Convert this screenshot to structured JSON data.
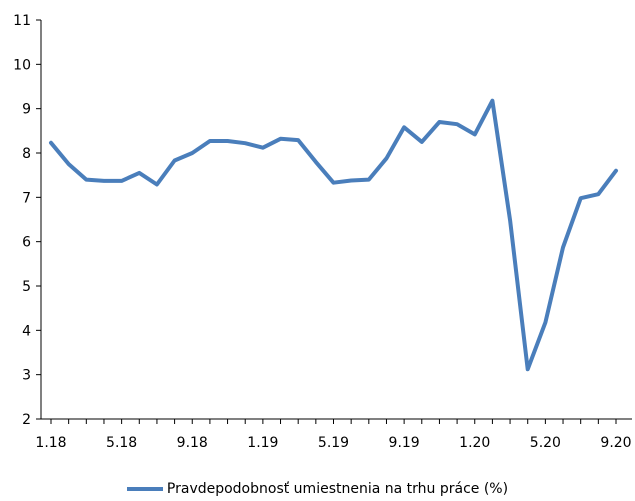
{
  "chart_data": {
    "type": "line",
    "title": "",
    "xlabel": "",
    "ylabel": "",
    "ylim": [
      2,
      11
    ],
    "yticks": [
      2,
      3,
      4,
      5,
      6,
      7,
      8,
      9,
      10,
      11
    ],
    "y_tick_labels": [
      "2",
      "3",
      "4",
      "5",
      "6",
      "7",
      "8",
      "9",
      "10",
      "11"
    ],
    "x_tick_labels": [
      "1.18",
      "5.18",
      "9.18",
      "1.19",
      "5.19",
      "9.19",
      "1.20",
      "5.20",
      "9.20"
    ],
    "x_tick_every": 4,
    "grid": false,
    "legend_position": "bottom",
    "series": [
      {
        "name": "Pravdepodobnosť umiestnenia na trhu práce (%)",
        "color": "#4a7ebb",
        "values": [
          8.23,
          7.75,
          7.4,
          7.37,
          7.37,
          7.55,
          7.29,
          7.83,
          8.0,
          8.27,
          8.27,
          8.22,
          8.12,
          8.32,
          8.29,
          7.8,
          7.33,
          7.38,
          7.4,
          7.88,
          8.58,
          8.25,
          8.7,
          8.65,
          8.42,
          9.18,
          6.48,
          3.12,
          4.18,
          5.87,
          6.98,
          7.07,
          7.6
        ]
      }
    ]
  }
}
